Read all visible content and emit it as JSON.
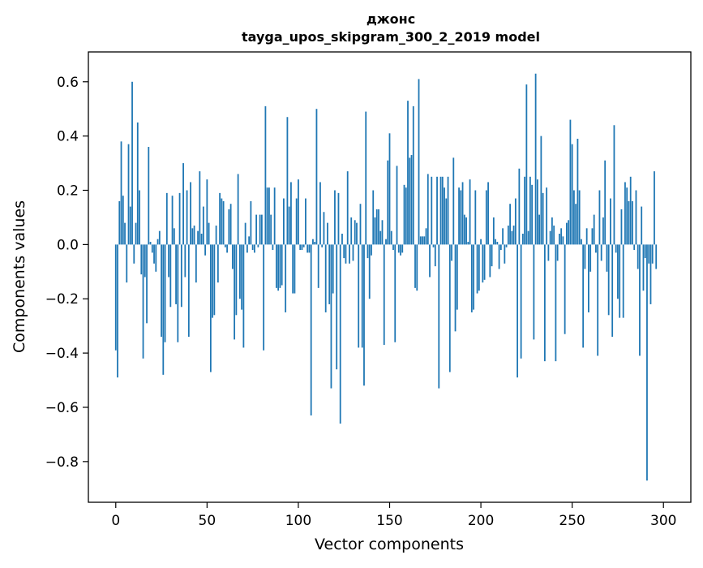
{
  "chart_data": {
    "type": "bar",
    "title": "джонс",
    "subtitle": "tayga_upos_skipgram_300_2_2019 model",
    "xlabel": "Vector components",
    "ylabel": "Components values",
    "xlim": [
      -15,
      315
    ],
    "ylim": [
      -0.95,
      0.71
    ],
    "xticks": [
      0,
      50,
      100,
      150,
      200,
      250,
      300
    ],
    "yticks": [
      -0.8,
      -0.6,
      -0.4,
      -0.2,
      0.0,
      0.2,
      0.4,
      0.6
    ],
    "xtick_labels": [
      "0",
      "50",
      "100",
      "150",
      "200",
      "250",
      "300"
    ],
    "ytick_labels": [
      "−0.8",
      "−0.6",
      "−0.4",
      "−0.2",
      "0.0",
      "0.2",
      "0.4",
      "0.6"
    ],
    "bar_color": "#1f77b4",
    "grid": false,
    "legend": "none",
    "values": [
      -0.39,
      -0.49,
      0.16,
      0.38,
      0.18,
      0.08,
      -0.14,
      0.37,
      0.14,
      0.6,
      -0.07,
      0.08,
      0.45,
      0.2,
      -0.11,
      -0.42,
      -0.12,
      -0.29,
      0.36,
      0.01,
      -0.03,
      -0.07,
      -0.1,
      0.02,
      0.05,
      -0.34,
      -0.48,
      -0.36,
      0.19,
      -0.12,
      -0.23,
      0.18,
      0.06,
      -0.22,
      -0.36,
      0.19,
      -0.23,
      0.3,
      -0.12,
      0.2,
      -0.34,
      0.23,
      0.06,
      0.07,
      -0.14,
      0.05,
      0.27,
      0.04,
      0.14,
      -0.04,
      0.24,
      0.08,
      -0.47,
      -0.27,
      -0.26,
      0.07,
      -0.14,
      0.19,
      0.17,
      0.16,
      -0.01,
      -0.03,
      0.13,
      0.15,
      -0.09,
      -0.35,
      -0.26,
      0.26,
      -0.2,
      -0.24,
      -0.38,
      0.08,
      -0.03,
      0.03,
      0.16,
      -0.02,
      -0.03,
      0.11,
      -0.01,
      0.11,
      0.11,
      -0.39,
      0.51,
      0.21,
      0.21,
      0.11,
      -0.02,
      0.21,
      -0.16,
      -0.17,
      -0.16,
      -0.15,
      0.17,
      -0.25,
      0.47,
      0.14,
      0.23,
      -0.18,
      -0.18,
      0.17,
      0.24,
      -0.02,
      -0.02,
      -0.01,
      0.17,
      -0.03,
      -0.03,
      -0.63,
      0.02,
      0.01,
      0.5,
      -0.16,
      0.23,
      -0.01,
      0.12,
      -0.25,
      0.08,
      -0.22,
      -0.53,
      -0.18,
      0.2,
      -0.46,
      0.19,
      -0.66,
      0.04,
      -0.05,
      -0.07,
      0.27,
      -0.07,
      0.1,
      -0.06,
      0.09,
      0.08,
      -0.38,
      0.15,
      -0.38,
      -0.52,
      0.49,
      -0.05,
      -0.2,
      -0.04,
      0.2,
      0.1,
      0.13,
      0.13,
      0.05,
      0.09,
      -0.37,
      0.02,
      0.31,
      0.41,
      0.05,
      -0.02,
      -0.36,
      0.29,
      -0.03,
      -0.04,
      -0.03,
      0.22,
      0.21,
      0.53,
      0.32,
      0.33,
      0.51,
      -0.16,
      -0.17,
      0.61,
      0.03,
      0.03,
      0.03,
      0.06,
      0.26,
      -0.12,
      0.25,
      -0.01,
      -0.08,
      0.25,
      -0.53,
      0.25,
      0.25,
      0.21,
      0.17,
      0.25,
      -0.47,
      -0.06,
      0.32,
      -0.32,
      -0.24,
      0.21,
      0.2,
      0.23,
      0.11,
      0.1,
      0.01,
      0.24,
      -0.25,
      -0.24,
      0.2,
      -0.18,
      -0.17,
      0.02,
      -0.14,
      -0.13,
      0.2,
      0.23,
      -0.12,
      -0.08,
      0.1,
      0.02,
      0.01,
      -0.09,
      -0.02,
      0.06,
      -0.07,
      -0.01,
      0.07,
      0.15,
      0.05,
      0.07,
      0.17,
      -0.49,
      0.28,
      -0.42,
      0.04,
      0.25,
      0.59,
      0.05,
      0.25,
      0.22,
      -0.35,
      0.63,
      0.24,
      0.11,
      0.4,
      0.19,
      -0.43,
      0.21,
      -0.06,
      0.05,
      0.1,
      0.07,
      -0.43,
      -0.06,
      0.04,
      0.06,
      0.03,
      -0.33,
      0.08,
      0.09,
      0.46,
      0.37,
      0.2,
      0.15,
      0.39,
      0.2,
      0.02,
      -0.38,
      -0.09,
      0.06,
      -0.25,
      -0.1,
      0.06,
      0.11,
      -0.03,
      -0.41,
      0.2,
      -0.06,
      0.1,
      0.31,
      -0.1,
      -0.26,
      0.17,
      -0.34,
      0.44,
      -0.03,
      -0.2,
      -0.27,
      0.13,
      -0.27,
      0.23,
      0.21,
      0.16,
      0.25,
      0.16,
      -0.02,
      0.2,
      -0.09,
      -0.41,
      0.14,
      -0.17,
      -0.05,
      -0.87,
      -0.07,
      -0.22,
      -0.07,
      0.27,
      -0.09
    ]
  }
}
